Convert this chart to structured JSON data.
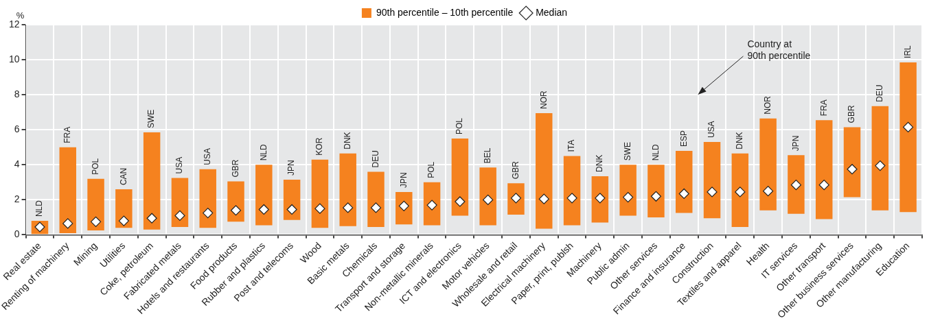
{
  "chart_data": {
    "type": "bar",
    "ylabel": "%",
    "categories": [
      "Real estate",
      "Renting of machinery",
      "Mining",
      "Utilities",
      "Coke, petroleum",
      "Fabricated metals",
      "Hotels and restaurants",
      "Food products",
      "Rubber and plastics",
      "Post and telecoms",
      "Wood",
      "Basic metals",
      "Chemicals",
      "Transport and storage",
      "Non-metallic minerals",
      "ICT and electronics",
      "Motor vehicles",
      "Wholesale and retail",
      "Electrical machinery",
      "Paper, print, publsh",
      "Machinery",
      "Public admin",
      "Other services",
      "Finance and insurance",
      "Construction",
      "Textiles and apparel",
      "Health",
      "IT services",
      "Other transport",
      "Other business services",
      "Other manufacturing",
      "Education"
    ],
    "series": [
      {
        "type": "bar",
        "name": "90th percentile – 10th percentile",
        "color": "#f5821f",
        "base": [
          0.05,
          0.1,
          0.25,
          0.4,
          0.3,
          0.45,
          0.4,
          0.75,
          0.55,
          0.85,
          0.4,
          0.5,
          0.45,
          0.6,
          0.55,
          1.1,
          0.55,
          1.15,
          0.35,
          0.55,
          0.7,
          1.1,
          1.0,
          1.25,
          0.95,
          0.45,
          1.4,
          1.2,
          0.9,
          2.15,
          1.4,
          1.3
        ],
        "values": [
          0.75,
          4.9,
          2.95,
          2.2,
          5.55,
          2.8,
          3.35,
          2.3,
          3.45,
          2.3,
          3.9,
          4.15,
          3.15,
          1.85,
          2.45,
          4.4,
          3.3,
          1.8,
          6.6,
          3.95,
          2.65,
          2.9,
          3.0,
          3.55,
          4.35,
          4.2,
          5.25,
          3.35,
          5.65,
          4.0,
          5.95,
          8.55
        ],
        "value_labels": [
          "NLD",
          "FRA",
          "POL",
          "CAN",
          "SWE",
          "USA",
          "USA",
          "GBR",
          "NLD",
          "JPN",
          "KOR",
          "DNK",
          "DEU",
          "JPN",
          "POL",
          "POL",
          "BEL",
          "GBR",
          "NOR",
          "ITA",
          "DNK",
          "SWE",
          "NLD",
          "ESP",
          "USA",
          "DNK",
          "NOR",
          "JPN",
          "FRA",
          "GBR",
          "DEU",
          "IRL"
        ]
      },
      {
        "type": "scatter",
        "name": "Median",
        "color": "#ffffff",
        "marker": "diamond",
        "x": [
          "Real estate",
          "Renting of machinery",
          "Mining",
          "Utilities",
          "Coke, petroleum",
          "Fabricated metals",
          "Hotels and restaurants",
          "Food products",
          "Rubber and plastics",
          "Post and telecoms",
          "Wood",
          "Basic metals",
          "Chemicals",
          "Transport and storage",
          "Non-metallic minerals",
          "ICT and electronics",
          "Motor vehicles",
          "Wholesale and retail",
          "Electrical machinery",
          "Paper, print, publsh",
          "Machinery",
          "Public admin",
          "Other services",
          "Finance and insurance",
          "Construction",
          "Textiles and apparel",
          "Health",
          "IT services",
          "Other transport",
          "Other business services",
          "Other manufacturing",
          "Education"
        ],
        "values": [
          0.45,
          0.65,
          0.75,
          0.8,
          0.95,
          1.1,
          1.25,
          1.4,
          1.45,
          1.45,
          1.5,
          1.55,
          1.55,
          1.65,
          1.7,
          1.9,
          2.0,
          2.1,
          2.05,
          2.1,
          2.1,
          2.15,
          2.2,
          2.35,
          2.45,
          2.45,
          2.5,
          2.85,
          2.85,
          3.75,
          3.95,
          6.15
        ]
      }
    ],
    "ylim": [
      0,
      12
    ],
    "yticks": [
      0,
      2,
      4,
      6,
      8,
      10,
      12
    ],
    "grid": true,
    "legend": "top",
    "annotations": [
      "Country at 90th percentile"
    ]
  }
}
